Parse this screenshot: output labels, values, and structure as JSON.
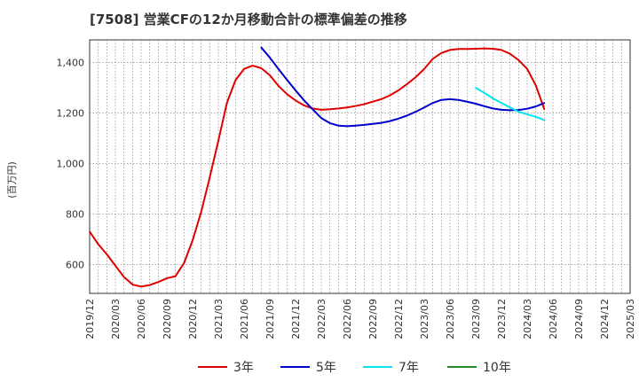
{
  "chart_data": {
    "type": "line",
    "title": "[7508]  営業CFの12か月移動合計の標準偏差の推移",
    "ylabel": "(百万円)",
    "xlabel": "",
    "ylim": [
      485,
      1490
    ],
    "yticks": [
      600,
      800,
      1000,
      1200,
      1400
    ],
    "ytick_labels": [
      "600",
      "800",
      "1,000",
      "1,200",
      "1,400"
    ],
    "x_tick_labels": [
      "2019/12",
      "2020/03",
      "2020/06",
      "2020/09",
      "2020/12",
      "2021/03",
      "2021/06",
      "2021/09",
      "2021/12",
      "2022/03",
      "2022/06",
      "2022/09",
      "2022/12",
      "2023/03",
      "2023/06",
      "2023/09",
      "2023/12",
      "2024/03",
      "2024/06",
      "2024/09",
      "2024/12",
      "2025/03"
    ],
    "grid": true,
    "legend_position": "bottom",
    "series": [
      {
        "name": "3年",
        "color": "#e00000",
        "values": [
          [
            "2019/12",
            730
          ],
          [
            "2020/01",
            680
          ],
          [
            "2020/02",
            640
          ],
          [
            "2020/03",
            595
          ],
          [
            "2020/04",
            550
          ],
          [
            "2020/05",
            520
          ],
          [
            "2020/06",
            512
          ],
          [
            "2020/07",
            518
          ],
          [
            "2020/08",
            530
          ],
          [
            "2020/09",
            545
          ],
          [
            "2020/10",
            553
          ],
          [
            "2020/11",
            605
          ],
          [
            "2020/12",
            695
          ],
          [
            "2021/01",
            808
          ],
          [
            "2021/02",
            945
          ],
          [
            "2021/03",
            1090
          ],
          [
            "2021/04",
            1240
          ],
          [
            "2021/05",
            1330
          ],
          [
            "2021/06",
            1375
          ],
          [
            "2021/07",
            1388
          ],
          [
            "2021/08",
            1378
          ],
          [
            "2021/09",
            1350
          ],
          [
            "2021/10",
            1308
          ],
          [
            "2021/11",
            1275
          ],
          [
            "2021/12",
            1250
          ],
          [
            "2022/01",
            1230
          ],
          [
            "2022/02",
            1218
          ],
          [
            "2022/03",
            1213
          ],
          [
            "2022/04",
            1215
          ],
          [
            "2022/05",
            1218
          ],
          [
            "2022/06",
            1222
          ],
          [
            "2022/07",
            1228
          ],
          [
            "2022/08",
            1235
          ],
          [
            "2022/09",
            1245
          ],
          [
            "2022/10",
            1255
          ],
          [
            "2022/11",
            1270
          ],
          [
            "2022/12",
            1290
          ],
          [
            "2023/01",
            1315
          ],
          [
            "2023/02",
            1342
          ],
          [
            "2023/03",
            1375
          ],
          [
            "2023/04",
            1415
          ],
          [
            "2023/05",
            1438
          ],
          [
            "2023/06",
            1450
          ],
          [
            "2023/07",
            1454
          ],
          [
            "2023/08",
            1454
          ],
          [
            "2023/09",
            1455
          ],
          [
            "2023/10",
            1456
          ],
          [
            "2023/11",
            1455
          ],
          [
            "2023/12",
            1450
          ],
          [
            "2024/01",
            1435
          ],
          [
            "2024/02",
            1410
          ],
          [
            "2024/03",
            1375
          ],
          [
            "2024/04",
            1310
          ],
          [
            "2024/05",
            1215
          ]
        ]
      },
      {
        "name": "5年",
        "color": "#0000cc",
        "values": [
          [
            "2021/08",
            1460
          ],
          [
            "2021/09",
            1420
          ],
          [
            "2021/10",
            1375
          ],
          [
            "2021/11",
            1332
          ],
          [
            "2021/12",
            1290
          ],
          [
            "2022/01",
            1250
          ],
          [
            "2022/02",
            1215
          ],
          [
            "2022/03",
            1180
          ],
          [
            "2022/04",
            1160
          ],
          [
            "2022/05",
            1150
          ],
          [
            "2022/06",
            1148
          ],
          [
            "2022/07",
            1150
          ],
          [
            "2022/08",
            1153
          ],
          [
            "2022/09",
            1157
          ],
          [
            "2022/10",
            1161
          ],
          [
            "2022/11",
            1168
          ],
          [
            "2022/12",
            1178
          ],
          [
            "2023/01",
            1190
          ],
          [
            "2023/02",
            1205
          ],
          [
            "2023/03",
            1222
          ],
          [
            "2023/04",
            1240
          ],
          [
            "2023/05",
            1252
          ],
          [
            "2023/06",
            1255
          ],
          [
            "2023/07",
            1252
          ],
          [
            "2023/08",
            1245
          ],
          [
            "2023/09",
            1237
          ],
          [
            "2023/10",
            1227
          ],
          [
            "2023/11",
            1218
          ],
          [
            "2023/12",
            1213
          ],
          [
            "2024/01",
            1211
          ],
          [
            "2024/02",
            1212
          ],
          [
            "2024/03",
            1217
          ],
          [
            "2024/04",
            1226
          ],
          [
            "2024/05",
            1240
          ]
        ]
      },
      {
        "name": "7年",
        "color": "#00e5ee",
        "values": [
          [
            "2023/09",
            1300
          ],
          [
            "2023/10",
            1280
          ],
          [
            "2023/11",
            1258
          ],
          [
            "2023/12",
            1240
          ],
          [
            "2024/01",
            1222
          ],
          [
            "2024/02",
            1205
          ],
          [
            "2024/03",
            1195
          ],
          [
            "2024/04",
            1185
          ],
          [
            "2024/05",
            1172
          ]
        ]
      },
      {
        "name": "10年",
        "color": "#228b22",
        "values": []
      }
    ]
  }
}
